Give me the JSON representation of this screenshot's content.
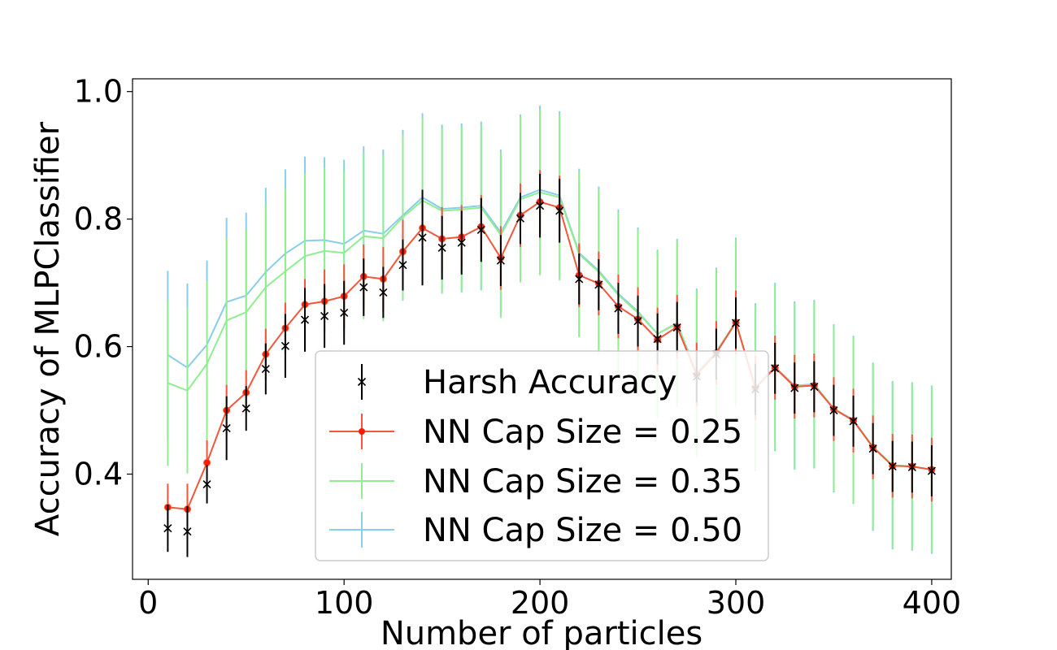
{
  "chart_data": {
    "type": "line",
    "title": "",
    "xlabel": "Number of particles",
    "ylabel": "Accuracy of MLPClassifier",
    "xlim": [
      -8,
      410
    ],
    "ylim": [
      0.235,
      1.02
    ],
    "xticks": [
      0,
      100,
      200,
      300,
      400
    ],
    "yticks": [
      0.4,
      0.6,
      0.8,
      1.0
    ],
    "xtick_labels": [
      "0",
      "100",
      "200",
      "300",
      "400"
    ],
    "ytick_labels": [
      "0.4",
      "0.6",
      "0.8",
      "1.0"
    ],
    "grid": false,
    "legend_position": "lower-center",
    "x": [
      10,
      20,
      30,
      40,
      50,
      60,
      70,
      80,
      90,
      100,
      110,
      120,
      130,
      140,
      150,
      160,
      170,
      180,
      190,
      200,
      210,
      220,
      230,
      240,
      250,
      260,
      270,
      280,
      290,
      300,
      310,
      320,
      330,
      340,
      350,
      360,
      370,
      380,
      390,
      400
    ],
    "series": [
      {
        "name": "Harsh Accuracy",
        "style": "marker-x-errorbar",
        "color": "#000000",
        "values": [
          0.315,
          0.31,
          0.384,
          0.472,
          0.503,
          0.565,
          0.601,
          0.642,
          0.648,
          0.653,
          0.693,
          0.685,
          0.728,
          0.771,
          0.755,
          0.763,
          0.783,
          0.735,
          0.801,
          0.821,
          0.813,
          0.706,
          0.697,
          0.66,
          0.64,
          0.612,
          0.63,
          0.553,
          0.588,
          0.637,
          0.533,
          0.566,
          0.535,
          0.537,
          0.5,
          0.483,
          0.44,
          0.412,
          0.411,
          0.405
        ],
        "errors": [
          0.037,
          0.04,
          0.03,
          0.05,
          0.035,
          0.04,
          0.05,
          0.05,
          0.05,
          0.05,
          0.045,
          0.04,
          0.04,
          0.075,
          0.05,
          0.05,
          0.05,
          0.04,
          0.04,
          0.05,
          0.05,
          0.04,
          0.04,
          0.04,
          0.04,
          0.04,
          0.04,
          0.04,
          0.04,
          0.04,
          0.04,
          0.04,
          0.04,
          0.04,
          0.04,
          0.04,
          0.04,
          0.04,
          0.04,
          0.04
        ]
      },
      {
        "name": "NN Cap Size = 0.25",
        "style": "line-dot-errorbar",
        "color": "#f4563a",
        "values": [
          0.348,
          0.345,
          0.418,
          0.5,
          0.528,
          0.588,
          0.629,
          0.666,
          0.671,
          0.679,
          0.71,
          0.706,
          0.749,
          0.786,
          0.769,
          0.772,
          0.788,
          0.739,
          0.806,
          0.827,
          0.818,
          0.712,
          0.699,
          0.663,
          0.643,
          0.611,
          0.631,
          0.556,
          0.59,
          0.638,
          0.535,
          0.567,
          0.537,
          0.539,
          0.502,
          0.484,
          0.442,
          0.413,
          0.412,
          0.407
        ],
        "errors": [
          0.037,
          0.04,
          0.035,
          0.04,
          0.035,
          0.04,
          0.04,
          0.04,
          0.05,
          0.05,
          0.05,
          0.05,
          0.05,
          0.05,
          0.05,
          0.05,
          0.05,
          0.05,
          0.05,
          0.05,
          0.05,
          0.05,
          0.05,
          0.05,
          0.05,
          0.05,
          0.05,
          0.05,
          0.05,
          0.05,
          0.05,
          0.05,
          0.05,
          0.05,
          0.05,
          0.05,
          0.05,
          0.05,
          0.05,
          0.05
        ]
      },
      {
        "name": "NN Cap Size = 0.35",
        "style": "line-errorbar",
        "color": "#90ee90",
        "values": [
          0.543,
          0.531,
          0.573,
          0.641,
          0.654,
          0.693,
          0.718,
          0.742,
          0.75,
          0.747,
          0.773,
          0.77,
          0.803,
          0.829,
          0.813,
          0.815,
          0.818,
          0.775,
          0.831,
          0.842,
          0.834,
          0.745,
          0.717,
          0.681,
          0.653,
          0.62,
          0.636,
          0.558,
          0.591,
          0.639,
          0.535,
          0.568,
          0.538,
          0.54,
          0.503,
          0.484,
          0.443,
          0.414,
          0.412,
          0.407
        ],
        "errors": [
          0.13,
          0.13,
          0.13,
          0.13,
          0.13,
          0.13,
          0.13,
          0.13,
          0.13,
          0.13,
          0.13,
          0.13,
          0.13,
          0.13,
          0.13,
          0.13,
          0.13,
          0.13,
          0.13,
          0.13,
          0.13,
          0.13,
          0.13,
          0.13,
          0.13,
          0.13,
          0.13,
          0.13,
          0.13,
          0.13,
          0.13,
          0.13,
          0.13,
          0.13,
          0.13,
          0.13,
          0.13,
          0.13,
          0.13,
          0.13
        ]
      },
      {
        "name": "NN Cap Size = 0.50",
        "style": "line-errorbar",
        "color": "#87ceeb",
        "values": [
          0.587,
          0.567,
          0.603,
          0.67,
          0.68,
          0.717,
          0.746,
          0.766,
          0.767,
          0.761,
          0.782,
          0.777,
          0.806,
          0.834,
          0.816,
          0.818,
          0.821,
          0.779,
          0.834,
          0.846,
          0.837,
          0.747,
          0.719,
          0.683,
          0.655,
          0.62,
          0.637,
          0.559,
          0.592,
          0.639,
          0.536,
          0.568,
          0.539,
          0.541,
          0.503,
          0.485,
          0.443,
          0.414,
          0.412,
          0.407
        ],
        "errors": [
          0.132,
          0.132,
          0.132,
          0.132,
          0.13,
          0.132,
          0.132,
          0.132,
          0.13,
          0.132,
          0.132,
          0.132,
          0.134,
          0.132,
          0.132,
          0.132,
          0.132,
          0.13,
          0.13,
          0.132,
          0.132,
          0.132,
          0.132,
          0.132,
          0.132,
          0.132,
          0.132,
          0.132,
          0.132,
          0.132,
          0.132,
          0.132,
          0.132,
          0.132,
          0.132,
          0.132,
          0.132,
          0.132,
          0.132,
          0.132
        ]
      }
    ]
  }
}
